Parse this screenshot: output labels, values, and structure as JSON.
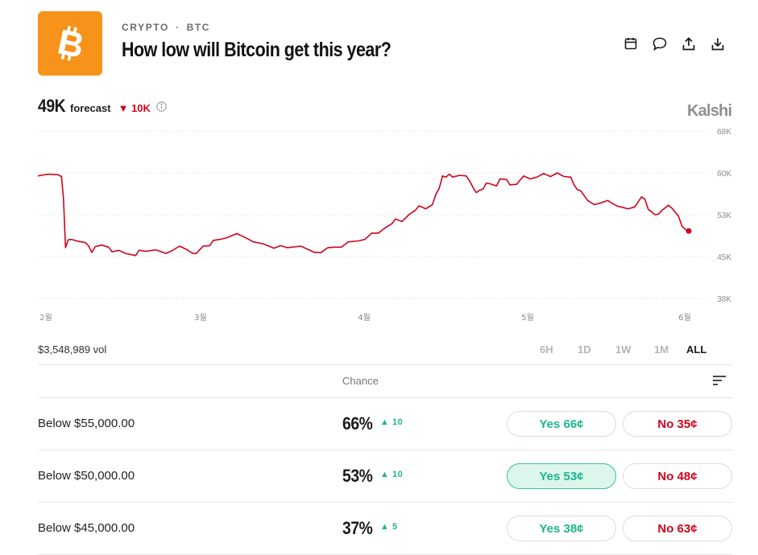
{
  "header": {
    "category": "CRYPTO",
    "ticker": "BTC",
    "separator": "·",
    "title": "How low will Bitcoin get this year?",
    "logo_icon": "bitcoin-icon",
    "actions": [
      "calendar-icon",
      "comment-icon",
      "share-icon",
      "download-icon"
    ]
  },
  "forecast": {
    "value": "49K",
    "label": "forecast",
    "change_arrow": "▼",
    "change": "10K",
    "info_icon": "info-icon"
  },
  "brand": "Kalshi",
  "colors": {
    "accent_orange": "#f7931a",
    "line_red": "#d0021b",
    "yes_green": "#1db58c",
    "no_red": "#d0021b"
  },
  "chart_data": {
    "type": "line",
    "x_labels": [
      "2월",
      "3월",
      "4월",
      "5월",
      "6월"
    ],
    "y_ticks": [
      "68K",
      "60K",
      "53K",
      "45K",
      "38K"
    ],
    "ylim": [
      38000,
      68000
    ],
    "grid": true,
    "series": [
      {
        "color": "#d0021b",
        "points": [
          [
            0,
            59500
          ],
          [
            3,
            59800
          ],
          [
            6,
            59700
          ],
          [
            7,
            59400
          ],
          [
            7.6,
            55800
          ],
          [
            8.2,
            46700
          ],
          [
            9,
            48200
          ],
          [
            10,
            48300
          ],
          [
            12,
            47900
          ],
          [
            14,
            47700
          ],
          [
            15,
            47100
          ],
          [
            16,
            45800
          ],
          [
            17,
            46900
          ],
          [
            19,
            47200
          ],
          [
            21,
            46800
          ],
          [
            22,
            45900
          ],
          [
            24,
            46200
          ],
          [
            26,
            45600
          ],
          [
            29,
            45200
          ],
          [
            30,
            46200
          ],
          [
            32,
            46000
          ],
          [
            35,
            46300
          ],
          [
            38,
            45600
          ],
          [
            40,
            46200
          ],
          [
            42,
            47000
          ],
          [
            44,
            46400
          ],
          [
            46,
            45600
          ],
          [
            47,
            45600
          ],
          [
            49,
            47000
          ],
          [
            51,
            47100
          ],
          [
            52,
            48100
          ],
          [
            54,
            48300
          ],
          [
            56,
            48600
          ],
          [
            59,
            49400
          ],
          [
            61,
            48800
          ],
          [
            64,
            47800
          ],
          [
            67,
            47400
          ],
          [
            70,
            46600
          ],
          [
            72,
            47100
          ],
          [
            74,
            46700
          ],
          [
            78,
            47000
          ],
          [
            80,
            46400
          ],
          [
            82,
            45800
          ],
          [
            84,
            45800
          ],
          [
            86,
            46700
          ],
          [
            88,
            46800
          ],
          [
            90,
            46800
          ],
          [
            92,
            47800
          ],
          [
            95,
            48000
          ],
          [
            97,
            48300
          ],
          [
            99,
            49500
          ],
          [
            101,
            49500
          ],
          [
            103,
            50500
          ],
          [
            105,
            51300
          ],
          [
            106,
            52200
          ],
          [
            108,
            51700
          ],
          [
            110,
            53000
          ],
          [
            112,
            53800
          ],
          [
            113,
            54500
          ],
          [
            115,
            54000
          ],
          [
            117,
            54700
          ],
          [
            118,
            56400
          ],
          [
            119,
            57400
          ],
          [
            120,
            59500
          ],
          [
            121,
            59300
          ],
          [
            122,
            59800
          ],
          [
            123,
            59300
          ],
          [
            125,
            59600
          ],
          [
            127,
            59500
          ],
          [
            128,
            58700
          ],
          [
            129,
            57600
          ],
          [
            130,
            56700
          ],
          [
            131,
            57100
          ],
          [
            132,
            57300
          ],
          [
            133,
            58300
          ],
          [
            134,
            58200
          ],
          [
            136,
            57800
          ],
          [
            137,
            59000
          ],
          [
            139,
            58900
          ],
          [
            140,
            58000
          ],
          [
            142,
            58100
          ],
          [
            144,
            59500
          ],
          [
            146,
            59000
          ],
          [
            148,
            59300
          ],
          [
            150,
            59900
          ],
          [
            152,
            59400
          ],
          [
            154,
            60000
          ],
          [
            156,
            59400
          ],
          [
            158,
            59300
          ],
          [
            159,
            58000
          ],
          [
            160,
            57200
          ],
          [
            161,
            57000
          ],
          [
            162,
            56200
          ],
          [
            163,
            55400
          ],
          [
            165,
            54700
          ],
          [
            167,
            55000
          ],
          [
            169,
            55400
          ],
          [
            170,
            55000
          ],
          [
            172,
            54400
          ],
          [
            173,
            54300
          ],
          [
            175,
            54000
          ],
          [
            177,
            54300
          ],
          [
            179,
            56000
          ],
          [
            180,
            55600
          ],
          [
            181,
            53900
          ],
          [
            182,
            53500
          ],
          [
            183,
            53000
          ],
          [
            184,
            53100
          ],
          [
            185,
            53700
          ],
          [
            187,
            54600
          ],
          [
            188,
            54100
          ],
          [
            190,
            52700
          ],
          [
            191,
            50800
          ],
          [
            192,
            50200
          ],
          [
            193,
            49900
          ]
        ]
      }
    ]
  },
  "volume": "$3,548,989 vol",
  "ranges": {
    "items": [
      "6H",
      "1D",
      "1W",
      "1M",
      "ALL"
    ],
    "active": "ALL"
  },
  "table": {
    "chance_header": "Chance",
    "sort_icon": "sort-icon",
    "rows": [
      {
        "label": "Below $55,000.00",
        "chance": "66%",
        "delta_arrow": "▲",
        "delta": "10",
        "yes": "Yes 66¢",
        "no": "No 35¢",
        "yes_selected": false
      },
      {
        "label": "Below $50,000.00",
        "chance": "53%",
        "delta_arrow": "▲",
        "delta": "10",
        "yes": "Yes 53¢",
        "no": "No 48¢",
        "yes_selected": true
      },
      {
        "label": "Below $45,000.00",
        "chance": "37%",
        "delta_arrow": "▲",
        "delta": "5",
        "yes": "Yes 38¢",
        "no": "No 63¢",
        "yes_selected": false
      }
    ]
  }
}
